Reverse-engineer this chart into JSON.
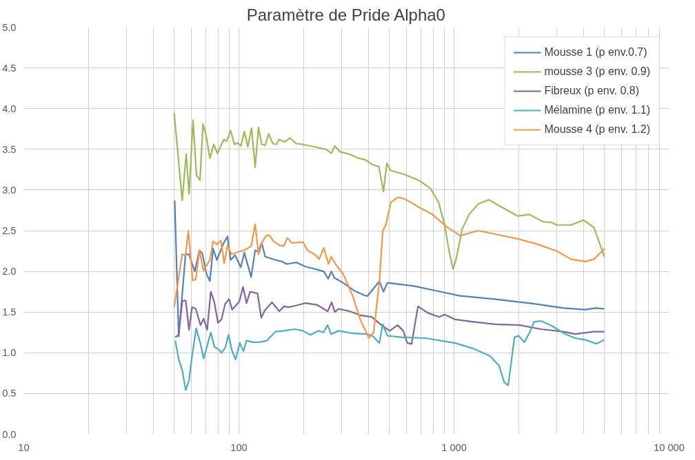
{
  "chart_data": {
    "type": "line",
    "title": "Paramètre de Pride Alpha0",
    "log": "x",
    "grid": true,
    "legend": "top right",
    "xlim": [
      10,
      10000
    ],
    "xticks": [
      10,
      100,
      {
        "value": 1000,
        "label": "1 000"
      },
      {
        "value": 10000,
        "label": "10 000"
      }
    ],
    "ylim": [
      0,
      5
    ],
    "yticks": [
      {
        "value": 0,
        "label": "0.0"
      },
      {
        "value": 0.5,
        "label": "0.5"
      },
      {
        "value": 1,
        "label": "1.0"
      },
      {
        "value": 1.5,
        "label": "1.5"
      },
      {
        "value": 2,
        "label": "2.0"
      },
      {
        "value": 2.5,
        "label": "2.5"
      },
      {
        "value": 3,
        "label": "3.0"
      },
      {
        "value": 3.5,
        "label": "3.5"
      },
      {
        "value": 4,
        "label": "4.0"
      },
      {
        "value": 4.5,
        "label": "4.5"
      },
      {
        "value": 5,
        "label": "5.0"
      }
    ],
    "series": [
      {
        "name": "Mousse 1 (p env.0.7)",
        "color": "#4f81bd",
        "x": [
          50.3,
          52.5,
          56.5,
          58.6,
          62.4,
          65.5,
          67.6,
          70.7,
          73.3,
          75.9,
          79,
          82,
          85,
          88.5,
          91.5,
          96,
          102,
          106,
          114,
          119,
          123,
          127.7,
          132.5,
          148,
          159,
          167,
          184.7,
          203,
          224.5,
          248,
          260,
          269,
          278,
          305,
          345,
          388,
          397,
          450,
          470,
          490,
          650,
          832,
          1067,
          1543,
          2236,
          3235,
          4064,
          4560,
          5000
        ],
        "values": [
          2.87,
          1.2,
          2.21,
          2.21,
          2.0,
          2.26,
          2.22,
          1.97,
          1.88,
          2.28,
          2.14,
          2.25,
          2.35,
          2.43,
          2.14,
          2.2,
          2.05,
          2.23,
          1.93,
          2.26,
          2.24,
          2.35,
          2.18,
          2.14,
          2.12,
          2.09,
          2.11,
          2.06,
          2.03,
          2.0,
          1.91,
          2.0,
          1.92,
          1.86,
          1.76,
          1.7,
          1.7,
          1.88,
          1.75,
          1.86,
          1.82,
          1.76,
          1.7,
          1.66,
          1.61,
          1.55,
          1.53,
          1.55,
          1.54
        ]
      },
      {
        "name": "mousse 3 (p env. 0.9)",
        "color": "#9bbb59",
        "x": [
          50,
          54.5,
          56.9,
          58.7,
          61.2,
          63.5,
          65.9,
          68.1,
          70.3,
          73.3,
          76.4,
          79.5,
          85,
          87.7,
          91.5,
          95.4,
          98.5,
          102.2,
          106,
          110,
          114.5,
          119,
          123.3,
          127.7,
          132.5,
          137.6,
          143.7,
          149.3,
          153.6,
          163.4,
          172.6,
          184.7,
          198.5,
          224.5,
          254,
          269,
          279,
          295,
          326,
          360,
          388,
          417,
          447,
          470,
          487,
          507,
          575,
          686,
          776,
          847,
          903,
          945,
          990,
          1023,
          1091,
          1175,
          1298,
          1452,
          1664,
          1979,
          2236,
          2592,
          2852,
          3006,
          3492,
          4000,
          4471,
          5000
        ],
        "values": [
          3.95,
          2.87,
          3.44,
          2.95,
          3.86,
          3.18,
          3.12,
          3.81,
          3.68,
          3.39,
          3.56,
          3.45,
          3.62,
          3.6,
          3.73,
          3.56,
          3.58,
          3.54,
          3.72,
          3.53,
          3.76,
          3.28,
          3.77,
          3.56,
          3.55,
          3.69,
          3.57,
          3.56,
          3.62,
          3.59,
          3.64,
          3.57,
          3.56,
          3.53,
          3.5,
          3.45,
          3.54,
          3.47,
          3.44,
          3.39,
          3.37,
          3.31,
          3.29,
          2.98,
          3.33,
          3.24,
          3.2,
          3.12,
          3.02,
          2.85,
          2.58,
          2.27,
          2.03,
          2.15,
          2.52,
          2.7,
          2.83,
          2.88,
          2.79,
          2.68,
          2.7,
          2.61,
          2.6,
          2.57,
          2.57,
          2.63,
          2.54,
          2.18
        ]
      },
      {
        "name": "Fibreux (p env. 0.8)",
        "color": "#8064a2",
        "x": [
          50.6,
          52.4,
          54.6,
          56.6,
          58.6,
          60.6,
          63,
          66.3,
          68.6,
          71.2,
          74,
          76.9,
          79.9,
          83,
          86.3,
          90,
          93,
          100.5,
          104.5,
          108.5,
          112.7,
          122,
          127,
          132,
          142.5,
          154,
          162,
          170.6,
          184,
          203,
          230,
          258.5,
          270,
          279,
          291,
          327,
          368,
          415,
          460,
          502,
          547,
          581,
          606,
          635,
          680,
          755,
          852,
          904,
          1010,
          1234,
          1543,
          2025,
          2530,
          3235,
          3650,
          4471,
          5000
        ],
        "values": [
          1.19,
          1.22,
          1.64,
          1.64,
          1.28,
          1.56,
          1.54,
          1.34,
          1.42,
          1.28,
          1.75,
          1.62,
          1.37,
          1.41,
          1.6,
          1.66,
          1.53,
          1.63,
          1.81,
          1.61,
          1.75,
          1.73,
          1.43,
          1.52,
          1.62,
          1.51,
          1.57,
          1.56,
          1.58,
          1.61,
          1.59,
          1.51,
          1.62,
          1.5,
          1.54,
          1.51,
          1.46,
          1.44,
          1.34,
          1.27,
          1.34,
          1.27,
          1.12,
          1.11,
          1.57,
          1.49,
          1.44,
          1.47,
          1.41,
          1.38,
          1.35,
          1.34,
          1.29,
          1.26,
          1.23,
          1.26,
          1.26
        ]
      },
      {
        "name": "Mélamine (p env. 1.1)",
        "color": "#4bacc6",
        "x": [
          50.6,
          52.4,
          54.6,
          56.6,
          58.6,
          61,
          63.3,
          66,
          68.6,
          74,
          77,
          79.9,
          83,
          86.3,
          89.5,
          93,
          96.5,
          101,
          105,
          108.5,
          115.5,
          125,
          135,
          148,
          162,
          181.5,
          198,
          215,
          234,
          247,
          258.5,
          268,
          291,
          335,
          392,
          417,
          450,
          466,
          490,
          575,
          736,
          1010,
          1234,
          1470,
          1622,
          1710,
          1786,
          1910,
          1996,
          2122,
          2236,
          2354,
          2541,
          2852,
          3235,
          3650,
          4064,
          4600,
          5000
        ],
        "values": [
          1.15,
          0.93,
          0.78,
          0.54,
          0.66,
          1.02,
          1.3,
          1.13,
          0.93,
          1.25,
          1.07,
          1.05,
          1.0,
          1.06,
          1.22,
          1.02,
          0.92,
          1.12,
          1.02,
          1.15,
          1.13,
          1.13,
          1.15,
          1.26,
          1.27,
          1.29,
          1.27,
          1.22,
          1.27,
          1.25,
          1.34,
          1.23,
          1.27,
          1.24,
          1.23,
          1.21,
          1.12,
          1.35,
          1.21,
          1.19,
          1.18,
          1.12,
          1.05,
          0.96,
          0.84,
          0.64,
          0.6,
          1.19,
          1.21,
          1.13,
          1.24,
          1.38,
          1.39,
          1.33,
          1.24,
          1.18,
          1.16,
          1.11,
          1.16
        ]
      },
      {
        "name": "Mousse 4 (p env. 1.2)",
        "color": "#f79646",
        "x": [
          50,
          54.5,
          56.5,
          58.2,
          61,
          63,
          65.5,
          68.5,
          73.3,
          75.9,
          79,
          82.3,
          85.5,
          88.5,
          92.5,
          99,
          106,
          114,
          119,
          123.5,
          129,
          134,
          139,
          144.7,
          155,
          161.5,
          168,
          176,
          198.5,
          208,
          224.5,
          236,
          248,
          261,
          269,
          281,
          305,
          338,
          365,
          402,
          423,
          450,
          466,
          483,
          509,
          547,
          590,
          686,
          794,
          922,
          1067,
          1298,
          1543,
          1979,
          2400,
          3006,
          3492,
          4064,
          4471,
          5000
        ],
        "values": [
          1.56,
          2.21,
          2.2,
          2.5,
          1.89,
          1.9,
          2.26,
          2.01,
          2.14,
          2.37,
          2.33,
          2.38,
          2.1,
          2.32,
          2.21,
          2.24,
          2.26,
          2.31,
          2.58,
          2.21,
          2.37,
          2.44,
          2.44,
          2.37,
          2.32,
          2.31,
          2.41,
          2.35,
          2.36,
          2.26,
          2.21,
          2.15,
          2.29,
          2.09,
          2.18,
          2.09,
          1.97,
          1.7,
          1.42,
          1.18,
          1.25,
          1.88,
          2.49,
          2.58,
          2.85,
          2.91,
          2.89,
          2.79,
          2.7,
          2.55,
          2.44,
          2.5,
          2.46,
          2.4,
          2.34,
          2.25,
          2.15,
          2.12,
          2.15,
          2.28
        ]
      }
    ]
  }
}
